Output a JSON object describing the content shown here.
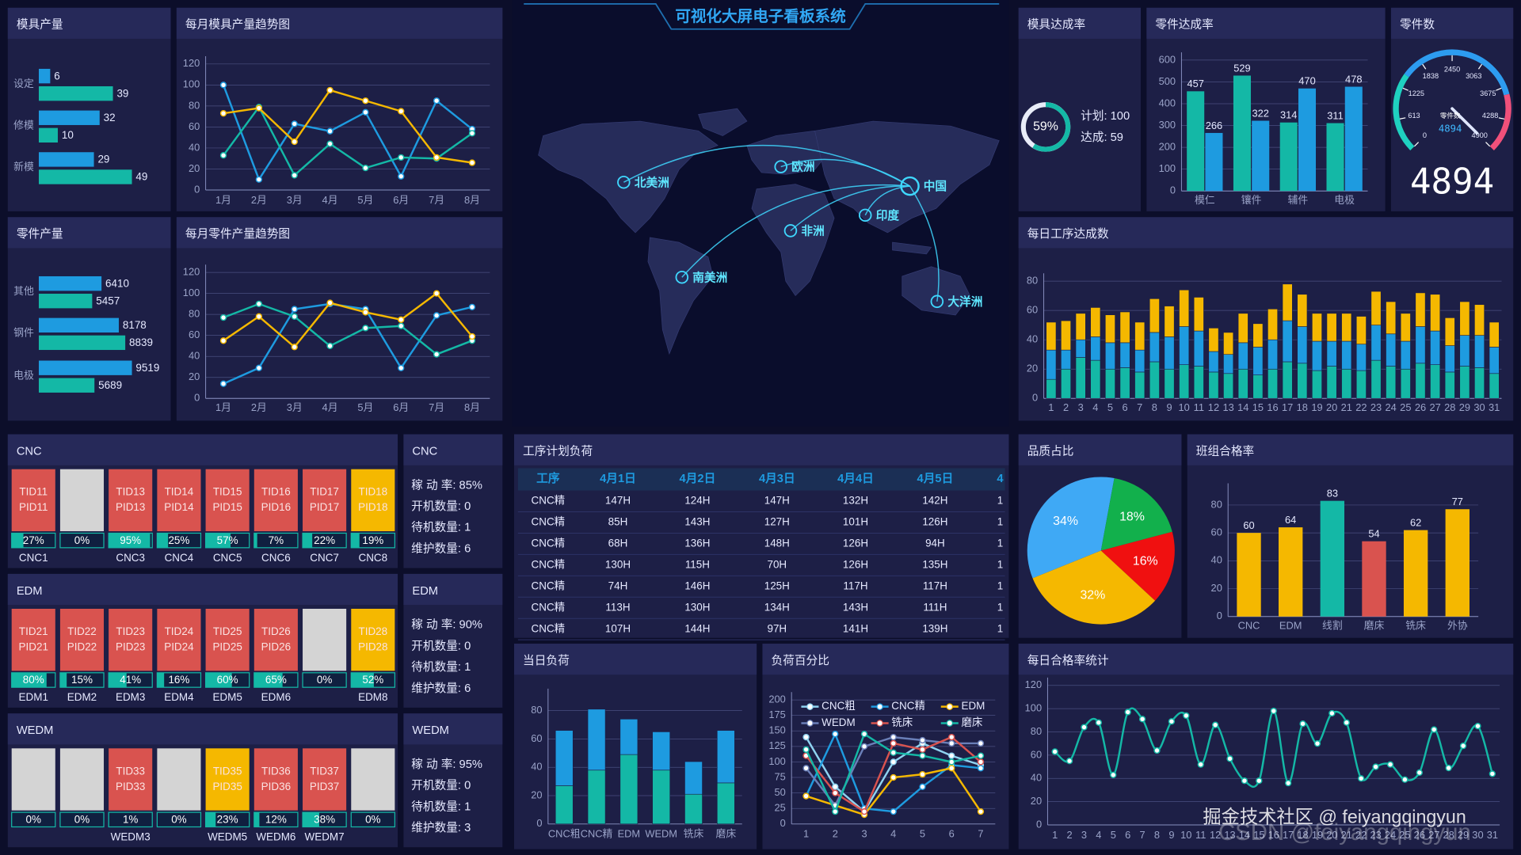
{
  "title": "可视化大屏电子看板系统",
  "chart_data": [
    {
      "type": "hbar",
      "title": "模具产量",
      "categories": [
        "设定",
        "修模",
        "新模"
      ],
      "series": [
        {
          "color": "#1e9be0",
          "values": [
            6,
            32,
            29
          ]
        },
        {
          "color": "#14b8a6",
          "values": [
            39,
            10,
            49
          ]
        }
      ]
    },
    {
      "type": "line",
      "title": "每月模具产量趋势图",
      "categories": [
        "1月",
        "2月",
        "3月",
        "4月",
        "5月",
        "6月",
        "7月",
        "8月"
      ],
      "series": [
        {
          "color": "#1e9be0",
          "values": [
            100,
            10,
            63,
            56,
            74,
            13,
            85,
            58
          ]
        },
        {
          "color": "#14b8a6",
          "values": [
            33,
            79,
            14,
            44,
            21,
            31,
            30,
            54
          ]
        },
        {
          "color": "#f5b800",
          "values": [
            73,
            78,
            46,
            95,
            85,
            75,
            31,
            26
          ]
        }
      ],
      "ylim": [
        0,
        120
      ],
      "yticks": [
        0,
        20,
        40,
        60,
        80,
        100,
        120
      ],
      "grid": true
    },
    {
      "type": "hbar",
      "title": "零件产量",
      "categories": [
        "其他",
        "钢件",
        "电极"
      ],
      "series": [
        {
          "color": "#1e9be0",
          "values": [
            6410,
            8178,
            9519
          ]
        },
        {
          "color": "#14b8a6",
          "values": [
            5457,
            8839,
            5689
          ]
        }
      ]
    },
    {
      "type": "line",
      "title": "每月零件产量趋势图",
      "categories": [
        "1月",
        "2月",
        "3月",
        "4月",
        "5月",
        "6月",
        "7月",
        "8月"
      ],
      "series": [
        {
          "color": "#1e9be0",
          "values": [
            14,
            29,
            85,
            90,
            85,
            29,
            79,
            87
          ]
        },
        {
          "color": "#14b8a6",
          "values": [
            77,
            90,
            78,
            50,
            67,
            69,
            42,
            55
          ]
        },
        {
          "color": "#f5b800",
          "values": [
            55,
            78,
            49,
            91,
            82,
            75,
            100,
            59
          ]
        }
      ],
      "ylim": [
        0,
        120
      ],
      "yticks": [
        0,
        20,
        40,
        60,
        80,
        100,
        120
      ],
      "grid": true
    },
    {
      "type": "donut",
      "title": "模具达成率",
      "value": 59,
      "value_label": "59%",
      "range": [
        0,
        100
      ],
      "color": "#14b8a6",
      "notes": [
        "计划: 100",
        "达成: 59"
      ]
    },
    {
      "type": "bar",
      "title": "零件达成率",
      "categories": [
        "模仁",
        "镶件",
        "辅件",
        "电极"
      ],
      "series": [
        {
          "color": "#14b8a6",
          "values": [
            457,
            529,
            314,
            311
          ]
        },
        {
          "color": "#1e9be0",
          "values": [
            266,
            322,
            470,
            478
          ]
        }
      ],
      "ylim": [
        0,
        600
      ],
      "yticks": [
        0,
        100,
        200,
        300,
        400,
        500,
        600
      ],
      "grid": true,
      "labels": true
    },
    {
      "type": "gauge",
      "title": "零件数",
      "label": "零件数",
      "value": 4894,
      "range": [
        0,
        4900
      ],
      "ticks": [
        0,
        613,
        1225,
        1838,
        2450,
        3063,
        3675,
        4288,
        4900
      ]
    },
    {
      "type": "bar",
      "title": "每日工序达成数",
      "stacked": true,
      "categories": [
        "1",
        "2",
        "3",
        "4",
        "5",
        "6",
        "7",
        "8",
        "9",
        "10",
        "11",
        "12",
        "13",
        "14",
        "15",
        "16",
        "17",
        "18",
        "19",
        "20",
        "21",
        "22",
        "23",
        "24",
        "25",
        "26",
        "27",
        "28",
        "29",
        "30",
        "31"
      ],
      "series": [
        {
          "color": "#14b8a6",
          "values": [
            13,
            20,
            28,
            26,
            20,
            21,
            18,
            25,
            20,
            23,
            22,
            18,
            17,
            20,
            16,
            20,
            25,
            24,
            19,
            22,
            20,
            19,
            26,
            22,
            20,
            24,
            23,
            18,
            22,
            21,
            17
          ]
        },
        {
          "color": "#1e9be0",
          "values": [
            20,
            13,
            12,
            16,
            18,
            17,
            15,
            20,
            22,
            26,
            24,
            14,
            13,
            18,
            19,
            20,
            28,
            25,
            20,
            17,
            19,
            18,
            24,
            22,
            19,
            25,
            23,
            18,
            21,
            22,
            18
          ]
        },
        {
          "color": "#f5b800",
          "values": [
            19,
            20,
            18,
            20,
            19,
            21,
            19,
            23,
            21,
            25,
            23,
            16,
            15,
            20,
            16,
            21,
            25,
            22,
            19,
            19,
            19,
            19,
            23,
            22,
            19,
            23,
            25,
            19,
            23,
            21,
            17
          ]
        }
      ],
      "ylim": [
        0,
        80
      ],
      "yticks": [
        0,
        20,
        40,
        60,
        80
      ],
      "grid": true
    },
    {
      "type": "bar",
      "title": "当日负荷",
      "stacked": true,
      "categories": [
        "CNC粗",
        "CNC精",
        "EDM",
        "WEDM",
        "铣床",
        "磨床"
      ],
      "series": [
        {
          "color": "#14b8a6",
          "values": [
            27,
            38,
            49,
            38,
            21,
            29
          ]
        },
        {
          "color": "#1e9be0",
          "values": [
            39,
            43,
            25,
            27,
            23,
            37
          ]
        }
      ],
      "ylim": [
        0,
        90
      ],
      "yticks": [
        0,
        20,
        40,
        60,
        80
      ],
      "grid": true
    },
    {
      "type": "line",
      "title": "负荷百分比",
      "categories": [
        "1",
        "2",
        "3",
        "4",
        "5",
        "6",
        "7"
      ],
      "series": [
        {
          "name": "CNC粗",
          "color": "#8fd3f0",
          "values": [
            140,
            60,
            20,
            100,
            130,
            110,
            95
          ]
        },
        {
          "name": "CNC精",
          "color": "#1e9be0",
          "values": [
            45,
            145,
            25,
            20,
            60,
            95,
            90
          ]
        },
        {
          "name": "EDM",
          "color": "#f5b800",
          "values": [
            45,
            30,
            15,
            75,
            80,
            90,
            20
          ]
        },
        {
          "name": "WEDM",
          "color": "#6a7fb8",
          "values": [
            90,
            30,
            125,
            140,
            135,
            130,
            130
          ]
        },
        {
          "name": "铣床",
          "color": "#d9534f",
          "values": [
            110,
            50,
            20,
            130,
            120,
            140,
            100
          ]
        },
        {
          "name": "磨床",
          "color": "#14b8a6",
          "values": [
            120,
            20,
            145,
            115,
            110,
            100,
            110
          ]
        }
      ],
      "ylim": [
        0,
        200
      ],
      "yticks": [
        0,
        25,
        50,
        75,
        100,
        125,
        150,
        175,
        200
      ],
      "grid": true
    },
    {
      "type": "pie",
      "title": "品质占比",
      "values": [
        34,
        18,
        16,
        32
      ],
      "value_labels": [
        "34%",
        "18%",
        "16%",
        "32%"
      ],
      "colors": [
        "#3fa9f5",
        "#12b04c",
        "#f01010",
        "#f5b800"
      ]
    },
    {
      "type": "bar",
      "title": "班组合格率",
      "categories": [
        "CNC",
        "EDM",
        "线割",
        "磨床",
        "铣床",
        "外协"
      ],
      "values": [
        60,
        64,
        83,
        54,
        62,
        77
      ],
      "colors": [
        "#f5b800",
        "#f5b800",
        "#14b8a6",
        "#d9534f",
        "#f5b800",
        "#f5b800"
      ],
      "ylim": [
        0,
        90
      ],
      "yticks": [
        0,
        20,
        40,
        60,
        80
      ],
      "grid": true,
      "labels": true
    },
    {
      "type": "line",
      "title": "每日合格率统计",
      "smooth": true,
      "categories": [
        "1",
        "2",
        "3",
        "4",
        "5",
        "6",
        "7",
        "8",
        "9",
        "10",
        "11",
        "12",
        "13",
        "14",
        "15",
        "16",
        "17",
        "18",
        "19",
        "20",
        "21",
        "22",
        "23",
        "24",
        "25",
        "26",
        "27",
        "28",
        "29",
        "30",
        "31"
      ],
      "series": [
        {
          "color": "#14b8a6",
          "values": [
            63,
            55,
            84,
            88,
            43,
            97,
            91,
            64,
            89,
            94,
            52,
            86,
            57,
            38,
            38,
            98,
            36,
            87,
            70,
            96,
            88,
            40,
            50,
            52,
            39,
            45,
            82,
            49,
            68,
            85,
            44
          ]
        }
      ],
      "ylim": [
        0,
        120
      ],
      "yticks": [
        0,
        20,
        40,
        60,
        80,
        100,
        120
      ],
      "grid": true
    }
  ],
  "map": {
    "regions": [
      "北美洲",
      "欧洲",
      "中国",
      "印度",
      "非洲",
      "南美洲",
      "大洋洲"
    ]
  },
  "machines": [
    {
      "title": "CNC",
      "stats_title": "CNC",
      "stats": [
        "稼 动 率: 85%",
        "开机数量: 0",
        "待机数量: 1",
        "维护数量: 6"
      ],
      "cells": [
        {
          "tid": "TID11",
          "pid": "PID11",
          "rate": 27,
          "rate_label": "27%",
          "name": "CNC1",
          "color": "#d9534f"
        },
        {
          "rate": 0,
          "rate_label": "0%",
          "color": "#d4d4d4"
        },
        {
          "tid": "TID13",
          "pid": "PID13",
          "rate": 95,
          "rate_label": "95%",
          "name": "CNC3",
          "color": "#d9534f"
        },
        {
          "tid": "TID14",
          "pid": "PID14",
          "rate": 25,
          "rate_label": "25%",
          "name": "CNC4",
          "color": "#d9534f"
        },
        {
          "tid": "TID15",
          "pid": "PID15",
          "rate": 57,
          "rate_label": "57%",
          "name": "CNC5",
          "color": "#d9534f"
        },
        {
          "tid": "TID16",
          "pid": "PID16",
          "rate": 7,
          "rate_label": "7%",
          "name": "CNC6",
          "color": "#d9534f"
        },
        {
          "tid": "TID17",
          "pid": "PID17",
          "rate": 22,
          "rate_label": "22%",
          "name": "CNC7",
          "color": "#d9534f"
        },
        {
          "tid": "TID18",
          "pid": "PID18",
          "rate": 19,
          "rate_label": "19%",
          "name": "CNC8",
          "color": "#f5b800"
        }
      ]
    },
    {
      "title": "EDM",
      "stats_title": "EDM",
      "stats": [
        "稼 动 率: 90%",
        "开机数量: 0",
        "待机数量: 1",
        "维护数量: 6"
      ],
      "cells": [
        {
          "tid": "TID21",
          "pid": "PID21",
          "rate": 80,
          "rate_label": "80%",
          "name": "EDM1",
          "color": "#d9534f"
        },
        {
          "tid": "TID22",
          "pid": "PID22",
          "rate": 15,
          "rate_label": "15%",
          "name": "EDM2",
          "color": "#d9534f"
        },
        {
          "tid": "TID23",
          "pid": "PID23",
          "rate": 41,
          "rate_label": "41%",
          "name": "EDM3",
          "color": "#d9534f"
        },
        {
          "tid": "TID24",
          "pid": "PID24",
          "rate": 16,
          "rate_label": "16%",
          "name": "EDM4",
          "color": "#d9534f"
        },
        {
          "tid": "TID25",
          "pid": "PID25",
          "rate": 60,
          "rate_label": "60%",
          "name": "EDM5",
          "color": "#d9534f"
        },
        {
          "tid": "TID26",
          "pid": "PID26",
          "rate": 65,
          "rate_label": "65%",
          "name": "EDM6",
          "color": "#d9534f"
        },
        {
          "rate": 0,
          "rate_label": "0%",
          "color": "#d4d4d4"
        },
        {
          "tid": "TID28",
          "pid": "PID28",
          "rate": 52,
          "rate_label": "52%",
          "name": "EDM8",
          "color": "#f5b800"
        }
      ]
    },
    {
      "title": "WEDM",
      "stats_title": "WEDM",
      "stats": [
        "稼 动 率: 95%",
        "开机数量: 0",
        "待机数量: 1",
        "维护数量: 3"
      ],
      "cells": [
        {
          "rate": 0,
          "rate_label": "0%",
          "color": "#d4d4d4"
        },
        {
          "rate": 0,
          "rate_label": "0%",
          "color": "#d4d4d4"
        },
        {
          "tid": "TID33",
          "pid": "PID33",
          "rate": 1,
          "rate_label": "1%",
          "name": "WEDM3",
          "color": "#d9534f"
        },
        {
          "rate": 0,
          "rate_label": "0%",
          "color": "#d4d4d4"
        },
        {
          "tid": "TID35",
          "pid": "PID35",
          "rate": 23,
          "rate_label": "23%",
          "name": "WEDM5",
          "color": "#f5b800"
        },
        {
          "tid": "TID36",
          "pid": "PID36",
          "rate": 12,
          "rate_label": "12%",
          "name": "WEDM6",
          "color": "#d9534f"
        },
        {
          "tid": "TID37",
          "pid": "PID37",
          "rate": 38,
          "rate_label": "38%",
          "name": "WEDM7",
          "color": "#d9534f"
        },
        {
          "rate": 0,
          "rate_label": "0%",
          "color": "#d4d4d4"
        }
      ]
    }
  ],
  "plan_table": {
    "title": "工序计划负荷",
    "columns": [
      "工序",
      "4月1日",
      "4月2日",
      "4月3日",
      "4月4日",
      "4月5日",
      "4"
    ],
    "rows": [
      [
        "CNC精",
        "147H",
        "124H",
        "147H",
        "132H",
        "142H",
        "1"
      ],
      [
        "CNC精",
        "85H",
        "143H",
        "127H",
        "101H",
        "126H",
        "1"
      ],
      [
        "CNC精",
        "68H",
        "136H",
        "148H",
        "126H",
        "94H",
        "1"
      ],
      [
        "CNC精",
        "130H",
        "115H",
        "70H",
        "126H",
        "135H",
        "1"
      ],
      [
        "CNC精",
        "74H",
        "146H",
        "125H",
        "117H",
        "117H",
        "1"
      ],
      [
        "CNC精",
        "113H",
        "130H",
        "134H",
        "143H",
        "111H",
        "1"
      ],
      [
        "CNC精",
        "107H",
        "144H",
        "97H",
        "141H",
        "139H",
        "1"
      ]
    ]
  },
  "watermarks": [
    "掘金技术社区 @ feiyangqingyun",
    "CSDN @feiyangqingyun"
  ]
}
